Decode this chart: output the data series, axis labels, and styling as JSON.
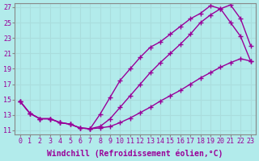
{
  "xlabel": "Windchill (Refroidissement éolien,°C)",
  "bg_color": "#b2ebeb",
  "grid_color": "#aadddd",
  "line_color": "#990099",
  "markersize": 2.5,
  "linewidth": 1.0,
  "xlim": [
    -0.5,
    23.5
  ],
  "ylim": [
    10.5,
    27.5
  ],
  "xticks": [
    0,
    1,
    2,
    3,
    4,
    5,
    6,
    7,
    8,
    9,
    10,
    11,
    12,
    13,
    14,
    15,
    16,
    17,
    18,
    19,
    20,
    21,
    22,
    23
  ],
  "yticks": [
    11,
    13,
    15,
    17,
    19,
    21,
    23,
    25,
    27
  ],
  "tick_fontsize": 6.0,
  "label_fontsize": 7.0,
  "line1_x": [
    0,
    1,
    2,
    3,
    4,
    5,
    6,
    7,
    8,
    9,
    10,
    11,
    12,
    13,
    14,
    15,
    16,
    17,
    18,
    19,
    20,
    21,
    22,
    23
  ],
  "line1_y": [
    14.8,
    13.2,
    12.5,
    12.5,
    12.0,
    11.8,
    11.3,
    11.2,
    11.3,
    11.5,
    12.0,
    12.6,
    13.3,
    14.0,
    14.8,
    15.5,
    16.2,
    17.0,
    17.8,
    18.5,
    19.2,
    19.8,
    20.3,
    20.0
  ],
  "line2_x": [
    0,
    1,
    2,
    3,
    4,
    5,
    6,
    7,
    8,
    9,
    10,
    11,
    12,
    13,
    14,
    15,
    16,
    17,
    18,
    19,
    20,
    21,
    22,
    23
  ],
  "line2_y": [
    14.8,
    13.2,
    12.5,
    12.5,
    12.0,
    11.8,
    11.3,
    11.2,
    13.1,
    15.3,
    17.5,
    19.0,
    20.5,
    21.8,
    22.5,
    23.5,
    24.5,
    25.5,
    26.2,
    27.2,
    26.8,
    25.0,
    23.2,
    20.0
  ],
  "line3_x": [
    0,
    1,
    2,
    3,
    4,
    5,
    6,
    7,
    8,
    9,
    10,
    11,
    12,
    13,
    14,
    15,
    16,
    17,
    18,
    19,
    20,
    21,
    22,
    23
  ],
  "line3_y": [
    14.8,
    13.2,
    12.5,
    12.5,
    12.0,
    11.8,
    11.3,
    11.2,
    11.5,
    12.5,
    14.0,
    15.5,
    17.0,
    18.5,
    19.8,
    21.0,
    22.2,
    23.5,
    25.0,
    26.0,
    26.8,
    27.3,
    25.5,
    22.0
  ]
}
